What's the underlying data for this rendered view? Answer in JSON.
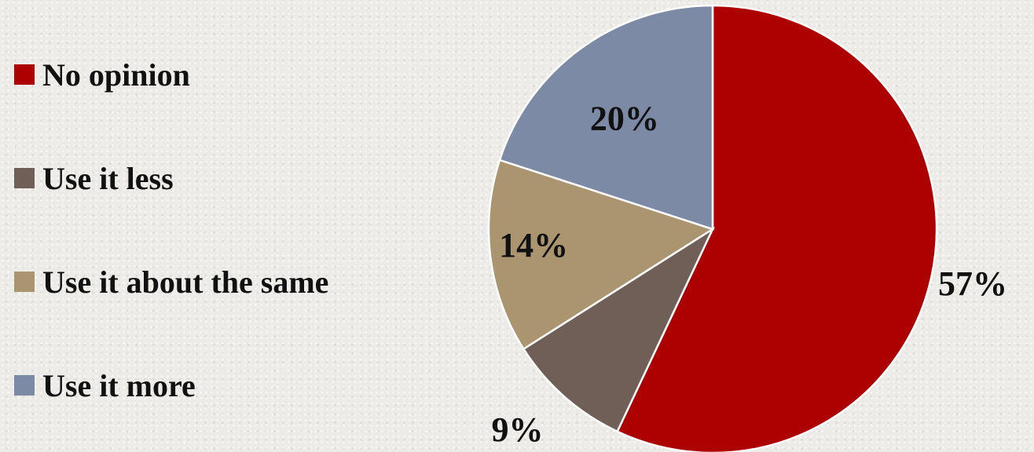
{
  "chart_data": {
    "type": "pie",
    "categories": [
      "No opinion",
      "Use it less",
      "Use it about the same",
      "Use it more"
    ],
    "values": [
      57,
      9,
      14,
      20
    ],
    "data_labels": [
      "57%",
      "9%",
      "14%",
      "20%"
    ],
    "colors": [
      "#ad0000",
      "#6f5f57",
      "#ab9470",
      "#7d8aa6"
    ],
    "start_angle_deg": 0,
    "direction": "clockwise",
    "legend_position": "left"
  }
}
